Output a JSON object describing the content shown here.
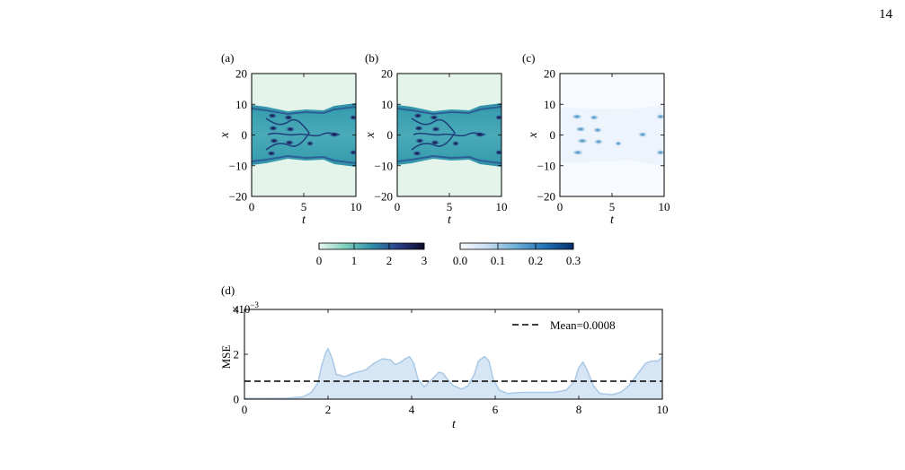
{
  "page_number": "14",
  "panels": {
    "a": {
      "label": "(a)"
    },
    "b": {
      "label": "(b)"
    },
    "c": {
      "label": "(c)"
    },
    "d": {
      "label": "(d)"
    }
  },
  "heatmap_axes": {
    "xlabel": "t",
    "ylabel": "x",
    "x_ticks": [
      "0",
      "5",
      "10"
    ],
    "y_ticks": [
      "20",
      "10",
      "0",
      "−10",
      "−20"
    ]
  },
  "colorbars": {
    "solution": {
      "ticks": [
        "0",
        "1",
        "2",
        "3"
      ],
      "colors": [
        "#eaf7ef",
        "#7fcfbc",
        "#2f8fa7",
        "#2b3f89",
        "#0b0a2a"
      ]
    },
    "error": {
      "ticks": [
        "0.0",
        "0.1",
        "0.2",
        "0.3"
      ],
      "colors": [
        "#f7fbff",
        "#c6dbef",
        "#6baed6",
        "#2171b5",
        "#08306b"
      ]
    }
  },
  "mse_plot": {
    "ylabel": "MSE",
    "xlabel": "t",
    "scale_label": "×10",
    "scale_exponent": "−3",
    "legend_label": "Mean=0.0008"
  },
  "chart_data": [
    {
      "type": "heatmap",
      "panel": "(a)",
      "xlabel": "t",
      "ylabel": "x",
      "xlim": [
        0,
        10
      ],
      "ylim": [
        -20,
        20
      ],
      "colorbar_range": [
        0,
        3
      ]
    },
    {
      "type": "heatmap",
      "panel": "(b)",
      "xlabel": "t",
      "ylabel": "x",
      "xlim": [
        0,
        10
      ],
      "ylim": [
        -20,
        20
      ],
      "colorbar_range": [
        0,
        3
      ]
    },
    {
      "type": "heatmap",
      "panel": "(c)",
      "xlabel": "t",
      "ylabel": "x",
      "xlim": [
        0,
        10
      ],
      "ylim": [
        -20,
        20
      ],
      "colorbar_range": [
        0,
        0.3
      ]
    },
    {
      "type": "area",
      "panel": "(d)",
      "xlabel": "t",
      "ylabel": "MSE",
      "xlim": [
        0,
        10
      ],
      "ylim": [
        0,
        0.004
      ],
      "x_ticks": [
        0,
        2,
        4,
        6,
        8,
        10
      ],
      "y_ticks": [
        0,
        0.002,
        0.004
      ],
      "y_tick_labels": [
        "0",
        "2",
        "4"
      ],
      "series": [
        {
          "x": [
            0,
            0.5,
            1.0,
            1.4,
            1.6,
            1.75,
            1.85,
            1.95,
            2.0,
            2.1,
            2.2,
            2.4,
            2.6,
            2.9,
            3.1,
            3.3,
            3.5,
            3.6,
            3.7,
            3.85,
            3.95,
            4.05,
            4.15,
            4.3,
            4.5,
            4.65,
            4.75,
            4.85,
            5.0,
            5.2,
            5.35,
            5.5,
            5.6,
            5.75,
            5.85,
            5.95,
            6.1,
            6.3,
            6.6,
            7.0,
            7.4,
            7.7,
            7.9,
            8.0,
            8.1,
            8.2,
            8.35,
            8.5,
            8.8,
            9.0,
            9.2,
            9.4,
            9.6,
            9.75,
            9.9,
            10.0
          ],
          "y": [
            3e-05,
            3e-05,
            4e-05,
            0.0001,
            0.0003,
            0.0007,
            0.0015,
            0.0021,
            0.00225,
            0.0018,
            0.0011,
            0.001,
            0.00115,
            0.0013,
            0.0016,
            0.0018,
            0.00175,
            0.00155,
            0.0016,
            0.0018,
            0.0019,
            0.0016,
            0.0009,
            0.00055,
            0.0009,
            0.0012,
            0.00115,
            0.0009,
            0.0006,
            0.00045,
            0.0006,
            0.0011,
            0.0017,
            0.0019,
            0.0017,
            0.0009,
            0.0004,
            0.00025,
            0.0003,
            0.0003,
            0.0003,
            0.0004,
            0.0008,
            0.0014,
            0.00165,
            0.0013,
            0.0006,
            0.00025,
            0.0002,
            0.0003,
            0.0006,
            0.0011,
            0.0016,
            0.0017,
            0.0017,
            0.0019
          ]
        }
      ],
      "mean_line": {
        "y": 0.0008,
        "label": "Mean=0.0008"
      },
      "legend_position": "top-right",
      "fill_color": "#d7e6f4",
      "line_color": "#a9c9e6"
    }
  ]
}
